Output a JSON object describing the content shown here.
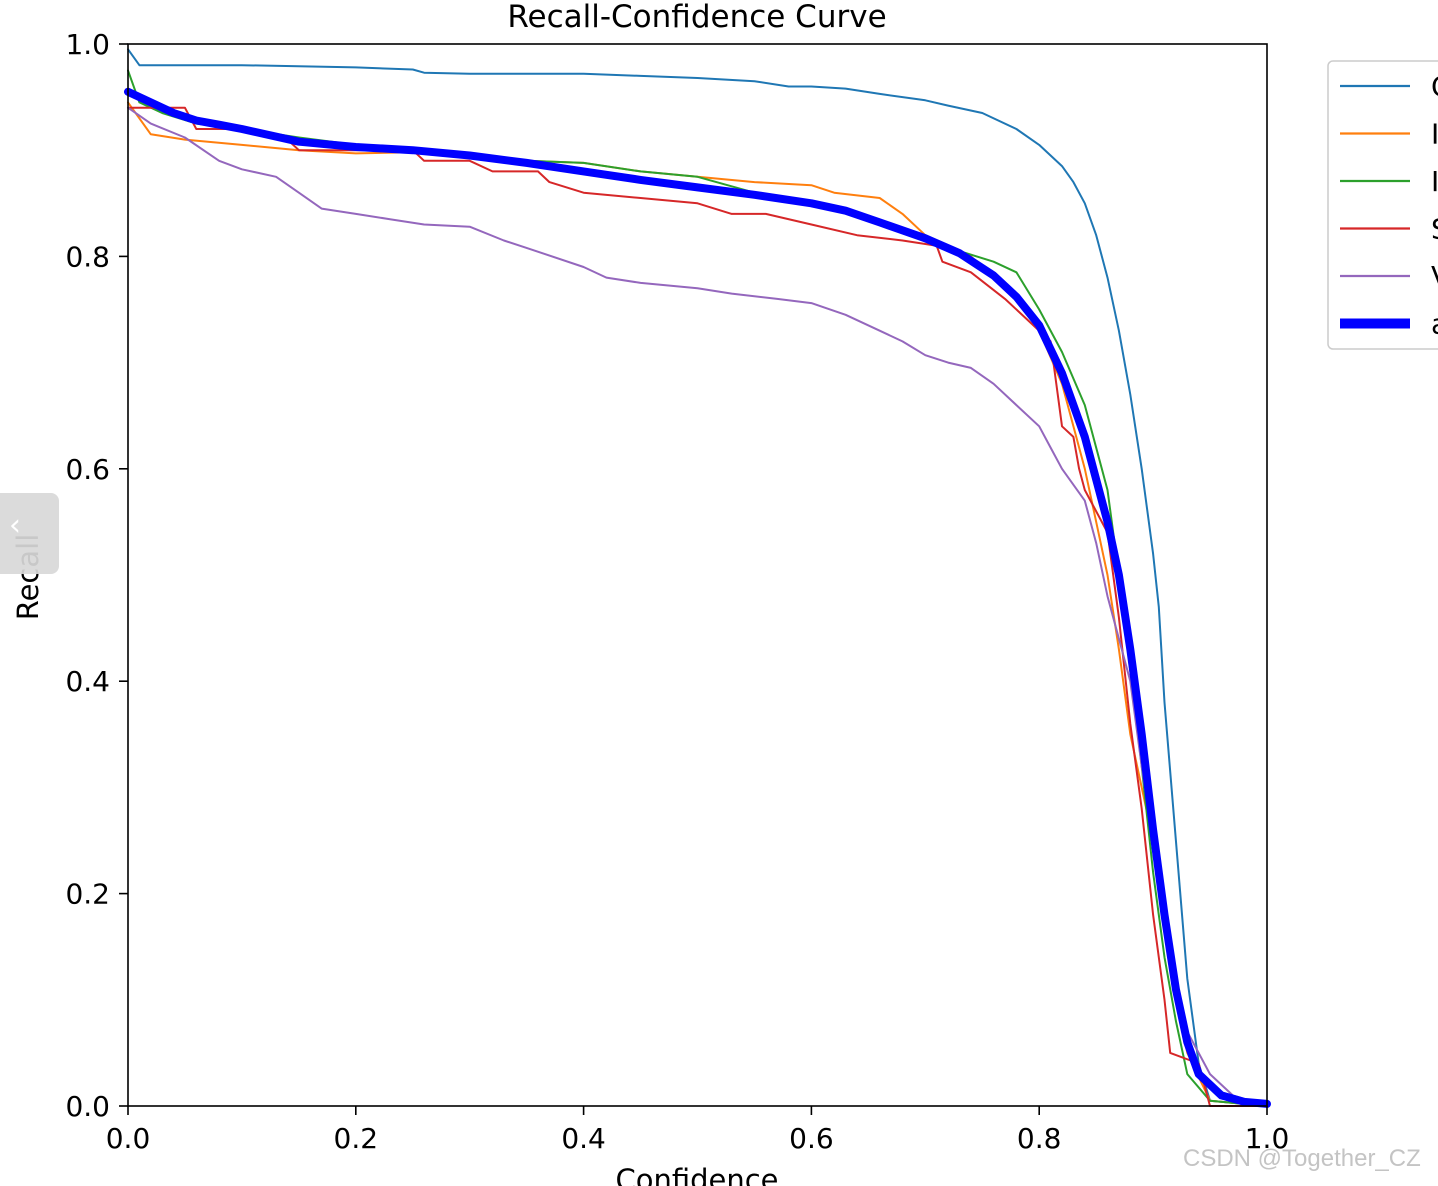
{
  "chart_data": {
    "type": "line",
    "title": "Recall-Confidence Curve",
    "xlabel": "Confidence",
    "ylabel": "Recall",
    "xlim": [
      0.0,
      1.0
    ],
    "ylim": [
      0.0,
      1.0
    ],
    "xticks": [
      "0.0",
      "0.2",
      "0.4",
      "0.6",
      "0.8",
      "1.0"
    ],
    "yticks": [
      "0.0",
      "0.2",
      "0.4",
      "0.6",
      "0.8",
      "1.0"
    ],
    "grid": false,
    "legend_position": "right, outside plot (clipped)",
    "legend_labels_visible": [
      "C",
      "I",
      "I",
      "S",
      "V",
      "a"
    ],
    "series": [
      {
        "name": "C",
        "color": "#1f77b4",
        "line_width": "thin",
        "points": [
          [
            0,
            0.995
          ],
          [
            0.01,
            0.98
          ],
          [
            0.05,
            0.98
          ],
          [
            0.1,
            0.98
          ],
          [
            0.2,
            0.978
          ],
          [
            0.25,
            0.976
          ],
          [
            0.26,
            0.973
          ],
          [
            0.3,
            0.972
          ],
          [
            0.35,
            0.972
          ],
          [
            0.4,
            0.972
          ],
          [
            0.45,
            0.97
          ],
          [
            0.5,
            0.968
          ],
          [
            0.55,
            0.965
          ],
          [
            0.58,
            0.96
          ],
          [
            0.6,
            0.96
          ],
          [
            0.63,
            0.958
          ],
          [
            0.66,
            0.953
          ],
          [
            0.7,
            0.947
          ],
          [
            0.72,
            0.942
          ],
          [
            0.75,
            0.935
          ],
          [
            0.78,
            0.92
          ],
          [
            0.8,
            0.905
          ],
          [
            0.82,
            0.885
          ],
          [
            0.83,
            0.87
          ],
          [
            0.84,
            0.85
          ],
          [
            0.85,
            0.82
          ],
          [
            0.86,
            0.78
          ],
          [
            0.87,
            0.73
          ],
          [
            0.88,
            0.67
          ],
          [
            0.89,
            0.6
          ],
          [
            0.9,
            0.52
          ],
          [
            0.905,
            0.47
          ],
          [
            0.91,
            0.38
          ],
          [
            0.92,
            0.25
          ],
          [
            0.93,
            0.12
          ],
          [
            0.94,
            0.04
          ],
          [
            0.95,
            0.005
          ],
          [
            1.0,
            0.0
          ]
        ]
      },
      {
        "name": "I",
        "color": "#ff7f0e",
        "line_width": "thin",
        "points": [
          [
            0,
            0.945
          ],
          [
            0.02,
            0.915
          ],
          [
            0.05,
            0.91
          ],
          [
            0.1,
            0.905
          ],
          [
            0.15,
            0.9
          ],
          [
            0.2,
            0.897
          ],
          [
            0.25,
            0.898
          ],
          [
            0.3,
            0.893
          ],
          [
            0.35,
            0.89
          ],
          [
            0.4,
            0.888
          ],
          [
            0.45,
            0.88
          ],
          [
            0.5,
            0.875
          ],
          [
            0.55,
            0.87
          ],
          [
            0.6,
            0.867
          ],
          [
            0.62,
            0.86
          ],
          [
            0.66,
            0.855
          ],
          [
            0.68,
            0.84
          ],
          [
            0.7,
            0.82
          ],
          [
            0.72,
            0.81
          ],
          [
            0.74,
            0.8
          ],
          [
            0.76,
            0.78
          ],
          [
            0.78,
            0.76
          ],
          [
            0.8,
            0.73
          ],
          [
            0.82,
            0.68
          ],
          [
            0.83,
            0.64
          ],
          [
            0.84,
            0.6
          ],
          [
            0.85,
            0.55
          ],
          [
            0.86,
            0.5
          ],
          [
            0.87,
            0.43
          ],
          [
            0.88,
            0.35
          ],
          [
            0.9,
            0.25
          ],
          [
            0.91,
            0.17
          ],
          [
            0.92,
            0.1
          ],
          [
            0.93,
            0.05
          ],
          [
            0.95,
            0.005
          ],
          [
            1.0,
            0.0
          ]
        ]
      },
      {
        "name": "I",
        "color": "#2ca02c",
        "line_width": "thin",
        "points": [
          [
            0,
            0.975
          ],
          [
            0.01,
            0.945
          ],
          [
            0.03,
            0.935
          ],
          [
            0.06,
            0.925
          ],
          [
            0.1,
            0.92
          ],
          [
            0.15,
            0.912
          ],
          [
            0.2,
            0.905
          ],
          [
            0.25,
            0.9
          ],
          [
            0.3,
            0.895
          ],
          [
            0.35,
            0.89
          ],
          [
            0.4,
            0.888
          ],
          [
            0.45,
            0.88
          ],
          [
            0.5,
            0.875
          ],
          [
            0.55,
            0.86
          ],
          [
            0.6,
            0.85
          ],
          [
            0.65,
            0.835
          ],
          [
            0.7,
            0.82
          ],
          [
            0.73,
            0.805
          ],
          [
            0.76,
            0.795
          ],
          [
            0.78,
            0.785
          ],
          [
            0.8,
            0.75
          ],
          [
            0.82,
            0.71
          ],
          [
            0.84,
            0.66
          ],
          [
            0.86,
            0.58
          ],
          [
            0.87,
            0.5
          ],
          [
            0.88,
            0.41
          ],
          [
            0.89,
            0.32
          ],
          [
            0.9,
            0.22
          ],
          [
            0.91,
            0.14
          ],
          [
            0.92,
            0.08
          ],
          [
            0.93,
            0.03
          ],
          [
            0.95,
            0.005
          ],
          [
            1.0,
            0.0
          ]
        ]
      },
      {
        "name": "S",
        "color": "#d62728",
        "line_width": "thin",
        "points": [
          [
            0,
            0.94
          ],
          [
            0.05,
            0.94
          ],
          [
            0.06,
            0.92
          ],
          [
            0.1,
            0.92
          ],
          [
            0.14,
            0.91
          ],
          [
            0.15,
            0.9
          ],
          [
            0.2,
            0.9
          ],
          [
            0.25,
            0.9
          ],
          [
            0.26,
            0.89
          ],
          [
            0.3,
            0.89
          ],
          [
            0.32,
            0.88
          ],
          [
            0.36,
            0.88
          ],
          [
            0.37,
            0.87
          ],
          [
            0.4,
            0.86
          ],
          [
            0.45,
            0.855
          ],
          [
            0.5,
            0.85
          ],
          [
            0.53,
            0.84
          ],
          [
            0.56,
            0.84
          ],
          [
            0.6,
            0.83
          ],
          [
            0.64,
            0.82
          ],
          [
            0.68,
            0.815
          ],
          [
            0.71,
            0.81
          ],
          [
            0.715,
            0.795
          ],
          [
            0.74,
            0.785
          ],
          [
            0.77,
            0.76
          ],
          [
            0.79,
            0.74
          ],
          [
            0.81,
            0.72
          ],
          [
            0.815,
            0.68
          ],
          [
            0.82,
            0.64
          ],
          [
            0.83,
            0.63
          ],
          [
            0.835,
            0.6
          ],
          [
            0.84,
            0.58
          ],
          [
            0.86,
            0.54
          ],
          [
            0.87,
            0.46
          ],
          [
            0.88,
            0.36
          ],
          [
            0.89,
            0.28
          ],
          [
            0.9,
            0.18
          ],
          [
            0.91,
            0.1
          ],
          [
            0.915,
            0.05
          ],
          [
            0.94,
            0.04
          ],
          [
            0.95,
            0.0
          ],
          [
            1.0,
            0.0
          ]
        ]
      },
      {
        "name": "V",
        "color": "#9467bd",
        "line_width": "thin",
        "points": [
          [
            0,
            0.94
          ],
          [
            0.02,
            0.925
          ],
          [
            0.05,
            0.912
          ],
          [
            0.08,
            0.89
          ],
          [
            0.1,
            0.882
          ],
          [
            0.13,
            0.875
          ],
          [
            0.15,
            0.86
          ],
          [
            0.17,
            0.845
          ],
          [
            0.2,
            0.84
          ],
          [
            0.23,
            0.835
          ],
          [
            0.26,
            0.83
          ],
          [
            0.3,
            0.828
          ],
          [
            0.33,
            0.815
          ],
          [
            0.35,
            0.808
          ],
          [
            0.4,
            0.79
          ],
          [
            0.42,
            0.78
          ],
          [
            0.45,
            0.775
          ],
          [
            0.5,
            0.77
          ],
          [
            0.53,
            0.765
          ],
          [
            0.57,
            0.76
          ],
          [
            0.6,
            0.756
          ],
          [
            0.63,
            0.745
          ],
          [
            0.66,
            0.73
          ],
          [
            0.68,
            0.72
          ],
          [
            0.7,
            0.707
          ],
          [
            0.72,
            0.7
          ],
          [
            0.74,
            0.695
          ],
          [
            0.76,
            0.68
          ],
          [
            0.78,
            0.66
          ],
          [
            0.8,
            0.64
          ],
          [
            0.81,
            0.62
          ],
          [
            0.82,
            0.6
          ],
          [
            0.84,
            0.57
          ],
          [
            0.85,
            0.53
          ],
          [
            0.86,
            0.48
          ],
          [
            0.88,
            0.4
          ],
          [
            0.89,
            0.32
          ],
          [
            0.9,
            0.25
          ],
          [
            0.91,
            0.18
          ],
          [
            0.92,
            0.12
          ],
          [
            0.93,
            0.07
          ],
          [
            0.95,
            0.03
          ],
          [
            0.97,
            0.01
          ],
          [
            1.0,
            0.0
          ]
        ]
      },
      {
        "name": "a",
        "color": "#0000ff",
        "line_width": "thick",
        "points": [
          [
            0,
            0.955
          ],
          [
            0.02,
            0.945
          ],
          [
            0.04,
            0.935
          ],
          [
            0.06,
            0.928
          ],
          [
            0.08,
            0.924
          ],
          [
            0.1,
            0.92
          ],
          [
            0.15,
            0.908
          ],
          [
            0.2,
            0.903
          ],
          [
            0.25,
            0.9
          ],
          [
            0.3,
            0.895
          ],
          [
            0.35,
            0.888
          ],
          [
            0.4,
            0.88
          ],
          [
            0.45,
            0.872
          ],
          [
            0.5,
            0.865
          ],
          [
            0.55,
            0.858
          ],
          [
            0.6,
            0.85
          ],
          [
            0.63,
            0.843
          ],
          [
            0.66,
            0.832
          ],
          [
            0.7,
            0.817
          ],
          [
            0.73,
            0.803
          ],
          [
            0.76,
            0.782
          ],
          [
            0.78,
            0.762
          ],
          [
            0.8,
            0.735
          ],
          [
            0.82,
            0.69
          ],
          [
            0.84,
            0.63
          ],
          [
            0.86,
            0.55
          ],
          [
            0.87,
            0.5
          ],
          [
            0.88,
            0.43
          ],
          [
            0.89,
            0.35
          ],
          [
            0.9,
            0.26
          ],
          [
            0.91,
            0.18
          ],
          [
            0.92,
            0.11
          ],
          [
            0.93,
            0.06
          ],
          [
            0.94,
            0.03
          ],
          [
            0.96,
            0.01
          ],
          [
            0.98,
            0.004
          ],
          [
            1.0,
            0.002
          ]
        ]
      }
    ]
  },
  "overlay": {
    "side_tab_icon": "chevron-left-icon",
    "side_tab_glyph": "‹",
    "watermark": "CSDN @Together_CZ"
  }
}
